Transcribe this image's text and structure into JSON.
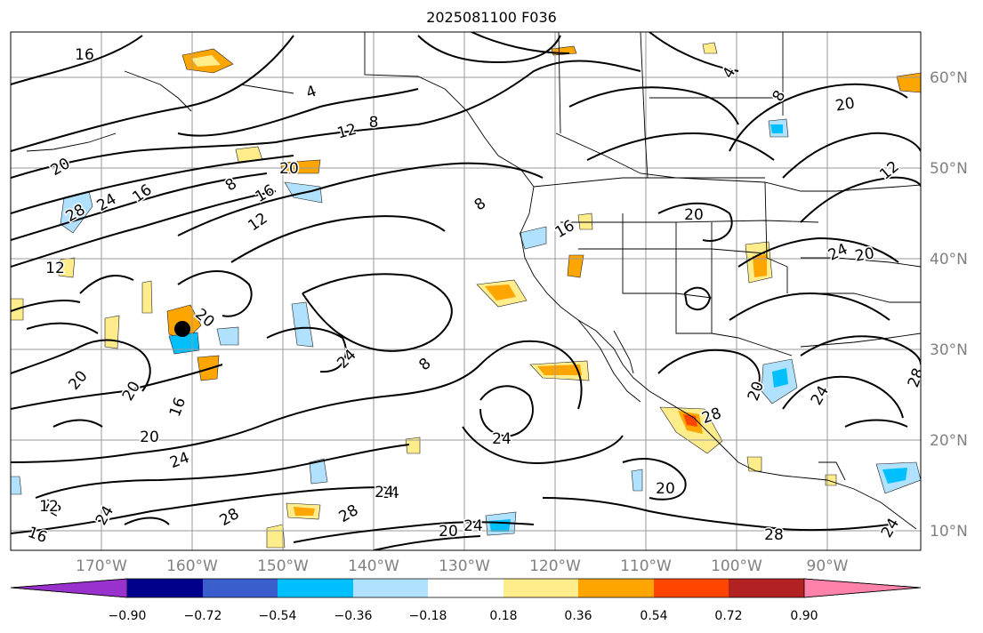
{
  "title": "2025081100 F036",
  "lat_labels": [
    "60°N",
    "50°N",
    "40°N",
    "30°N",
    "20°N",
    "10°N"
  ],
  "lon_labels": [
    "170°W",
    "160°W",
    "150°W",
    "140°W",
    "130°W",
    "120°W",
    "110°W",
    "100°W",
    "90°W"
  ],
  "colorbar": {
    "colors": [
      "#9932CC",
      "#00008B",
      "#3A5FCD",
      "#00BFFF",
      "#B0E2FF",
      "#FFFFFF",
      "#FFEC8B",
      "#FFA500",
      "#FF4500",
      "#B22222",
      "#FF82AB"
    ],
    "tick_labels": [
      "−0.90",
      "−0.72",
      "−0.54",
      "−0.36",
      "−0.18",
      "0.18",
      "0.36",
      "0.54",
      "0.72",
      "0.90"
    ]
  },
  "contour_labels": [
    "16",
    "4",
    "12",
    "8",
    "20",
    "28",
    "24",
    "16",
    "20",
    "12",
    "16",
    "8",
    "16",
    "20",
    "8",
    "20",
    "24",
    "20",
    "20",
    "16",
    "24",
    "20",
    "12",
    "12",
    "8",
    "24",
    "28",
    "24",
    "24",
    "16",
    "20",
    "24",
    "28",
    "20",
    "28",
    "24",
    "28",
    "24",
    "24",
    "20",
    "28",
    "12",
    "4",
    "8",
    "20",
    "12",
    "24",
    "20"
  ],
  "marker": "storm-center-dot"
}
